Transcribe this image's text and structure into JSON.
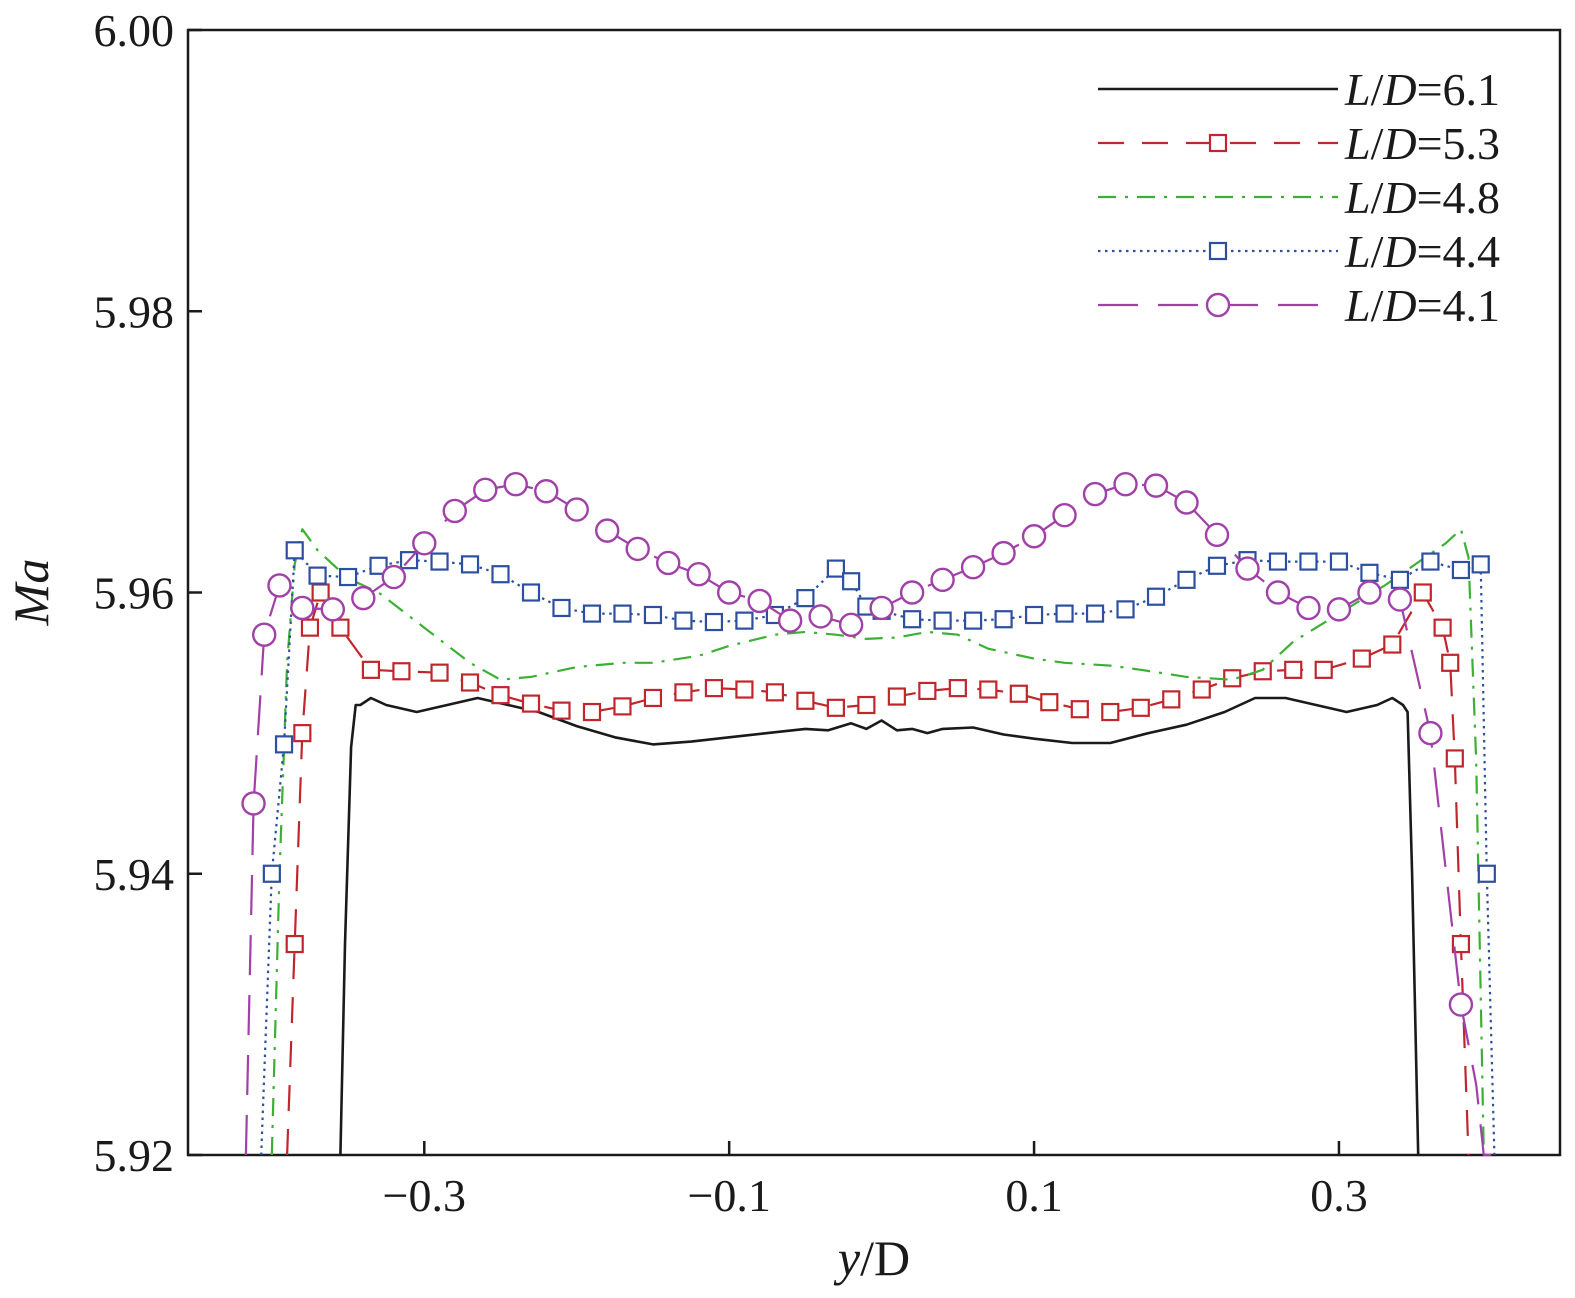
{
  "chart_data": {
    "type": "line",
    "title": "",
    "xlabel": "y/D",
    "ylabel": "Ma",
    "xlim": [
      -0.455,
      0.445
    ],
    "ylim": [
      5.92,
      6.0
    ],
    "xticks": [
      -0.3,
      -0.1,
      0.1,
      0.3
    ],
    "xtick_labels": [
      "−0.3",
      "−0.1",
      "0.1",
      "0.3"
    ],
    "yticks": [
      5.92,
      5.94,
      5.96,
      5.98,
      6.0
    ],
    "ytick_labels": [
      "5.92",
      "5.94",
      "5.96",
      "5.98",
      "6.00"
    ],
    "grid": false,
    "legend_position": "top-right",
    "series": [
      {
        "name": "L/D=6.1",
        "color": "#1a1a1a",
        "dash": "solid",
        "marker": "none",
        "x": [
          -0.355,
          -0.352,
          -0.348,
          -0.345,
          -0.342,
          -0.335,
          -0.325,
          -0.305,
          -0.285,
          -0.265,
          -0.245,
          -0.225,
          -0.2,
          -0.175,
          -0.15,
          -0.125,
          -0.1,
          -0.075,
          -0.05,
          -0.035,
          -0.02,
          -0.01,
          0.0,
          0.01,
          0.02,
          0.03,
          0.04,
          0.06,
          0.08,
          0.1,
          0.125,
          0.15,
          0.175,
          0.2,
          0.225,
          0.245,
          0.265,
          0.285,
          0.305,
          0.325,
          0.335,
          0.342,
          0.345,
          0.348,
          0.352
        ],
        "y": [
          5.92,
          5.935,
          5.949,
          5.952,
          5.952,
          5.9525,
          5.952,
          5.9515,
          5.952,
          5.9525,
          5.952,
          5.9515,
          5.9505,
          5.9497,
          5.9492,
          5.9494,
          5.9497,
          5.95,
          5.9503,
          5.9502,
          5.9507,
          5.9503,
          5.9509,
          5.9502,
          5.9503,
          5.95,
          5.9503,
          5.9504,
          5.9499,
          5.9496,
          5.9493,
          5.9493,
          5.95,
          5.9506,
          5.9515,
          5.9525,
          5.9525,
          5.952,
          5.9515,
          5.952,
          5.9525,
          5.952,
          5.9515,
          5.94,
          5.92
        ]
      },
      {
        "name": "L/D=5.3",
        "color": "#c0272d",
        "dash": "dashed",
        "marker": "square",
        "x": [
          -0.39,
          -0.385,
          -0.38,
          -0.375,
          -0.368,
          -0.355,
          -0.335,
          -0.315,
          -0.29,
          -0.27,
          -0.25,
          -0.23,
          -0.21,
          -0.19,
          -0.17,
          -0.15,
          -0.13,
          -0.11,
          -0.09,
          -0.07,
          -0.05,
          -0.03,
          -0.01,
          0.01,
          0.03,
          0.05,
          0.07,
          0.09,
          0.11,
          0.13,
          0.15,
          0.17,
          0.19,
          0.21,
          0.23,
          0.25,
          0.27,
          0.29,
          0.315,
          0.335,
          0.355,
          0.368,
          0.373,
          0.376,
          0.38,
          0.385
        ],
        "y": [
          5.92,
          5.935,
          5.95,
          5.9575,
          5.96,
          5.9575,
          5.9545,
          5.9544,
          5.9543,
          5.9536,
          5.9527,
          5.9521,
          5.9516,
          5.9515,
          5.9519,
          5.9525,
          5.9529,
          5.9532,
          5.9531,
          5.9529,
          5.9523,
          5.9518,
          5.952,
          5.9526,
          5.953,
          5.9532,
          5.9531,
          5.9528,
          5.9522,
          5.9517,
          5.9515,
          5.9518,
          5.9524,
          5.9531,
          5.9539,
          5.9544,
          5.9545,
          5.9545,
          5.9553,
          5.9563,
          5.96,
          5.9575,
          5.955,
          5.9482,
          5.935,
          5.92
        ]
      },
      {
        "name": "L/D=4.8",
        "color": "#3cb034",
        "dash": "dashdot",
        "marker": "none",
        "x": [
          -0.4,
          -0.395,
          -0.39,
          -0.385,
          -0.38,
          -0.37,
          -0.35,
          -0.33,
          -0.3,
          -0.27,
          -0.25,
          -0.23,
          -0.2,
          -0.17,
          -0.15,
          -0.12,
          -0.1,
          -0.07,
          -0.05,
          -0.03,
          -0.01,
          0.01,
          0.03,
          0.05,
          0.07,
          0.1,
          0.12,
          0.15,
          0.17,
          0.2,
          0.23,
          0.25,
          0.27,
          0.3,
          0.33,
          0.35,
          0.37,
          0.38,
          0.385,
          0.39,
          0.395
        ],
        "y": [
          5.92,
          5.94,
          5.955,
          5.962,
          5.9645,
          5.963,
          5.961,
          5.96,
          5.9575,
          5.955,
          5.9538,
          5.954,
          5.9547,
          5.955,
          5.955,
          5.9555,
          5.9562,
          5.957,
          5.9572,
          5.957,
          5.9567,
          5.9568,
          5.9572,
          5.957,
          5.956,
          5.9553,
          5.955,
          5.9548,
          5.9545,
          5.954,
          5.9538,
          5.9545,
          5.9565,
          5.9585,
          5.9605,
          5.962,
          5.9635,
          5.9645,
          5.9625,
          5.948,
          5.92
        ]
      },
      {
        "name": "L/D=4.4",
        "color": "#2e4fa0",
        "dash": "dotted",
        "marker": "square",
        "x": [
          -0.407,
          -0.4,
          -0.392,
          -0.385,
          -0.37,
          -0.35,
          -0.33,
          -0.31,
          -0.29,
          -0.27,
          -0.25,
          -0.23,
          -0.21,
          -0.19,
          -0.17,
          -0.15,
          -0.13,
          -0.11,
          -0.09,
          -0.07,
          -0.05,
          -0.03,
          -0.02,
          -0.01,
          0.0,
          0.02,
          0.04,
          0.06,
          0.08,
          0.1,
          0.12,
          0.14,
          0.16,
          0.18,
          0.2,
          0.22,
          0.24,
          0.26,
          0.28,
          0.3,
          0.32,
          0.34,
          0.36,
          0.38,
          0.393,
          0.397,
          0.402
        ],
        "y": [
          5.92,
          5.94,
          5.9492,
          5.963,
          5.9612,
          5.9611,
          5.9619,
          5.9623,
          5.9622,
          5.962,
          5.9613,
          5.96,
          5.9589,
          5.9585,
          5.9585,
          5.9584,
          5.958,
          5.9579,
          5.958,
          5.9584,
          5.9596,
          5.9617,
          5.9608,
          5.959,
          5.9587,
          5.9581,
          5.958,
          5.958,
          5.9581,
          5.9584,
          5.9585,
          5.9585,
          5.9588,
          5.9597,
          5.9609,
          5.9619,
          5.9623,
          5.9622,
          5.9622,
          5.9622,
          5.9614,
          5.9609,
          5.9622,
          5.9616,
          5.962,
          5.94,
          5.92
        ]
      },
      {
        "name": "L/D=4.1",
        "color": "#a040a8",
        "dash": "longdash",
        "marker": "circle",
        "x": [
          -0.417,
          -0.412,
          -0.405,
          -0.395,
          -0.38,
          -0.36,
          -0.34,
          -0.32,
          -0.3,
          -0.28,
          -0.26,
          -0.24,
          -0.22,
          -0.2,
          -0.18,
          -0.16,
          -0.14,
          -0.12,
          -0.1,
          -0.08,
          -0.06,
          -0.04,
          -0.02,
          0.0,
          0.02,
          0.04,
          0.06,
          0.08,
          0.1,
          0.12,
          0.14,
          0.16,
          0.18,
          0.2,
          0.22,
          0.24,
          0.26,
          0.28,
          0.3,
          0.32,
          0.34,
          0.36,
          0.38,
          0.39,
          0.395,
          0.4
        ],
        "y": [
          5.92,
          5.945,
          5.957,
          5.9605,
          5.9589,
          5.9588,
          5.9596,
          5.9611,
          5.9635,
          5.9658,
          5.9673,
          5.9677,
          5.9672,
          5.9659,
          5.9644,
          5.9631,
          5.9621,
          5.9613,
          5.96,
          5.9594,
          5.958,
          5.9583,
          5.9577,
          5.9589,
          5.96,
          5.9609,
          5.9618,
          5.9628,
          5.964,
          5.9655,
          5.967,
          5.9677,
          5.9676,
          5.9664,
          5.9641,
          5.9617,
          5.96,
          5.9589,
          5.9588,
          5.96,
          5.9595,
          5.95,
          5.9307,
          5.925,
          5.92,
          5.92
        ]
      }
    ]
  }
}
